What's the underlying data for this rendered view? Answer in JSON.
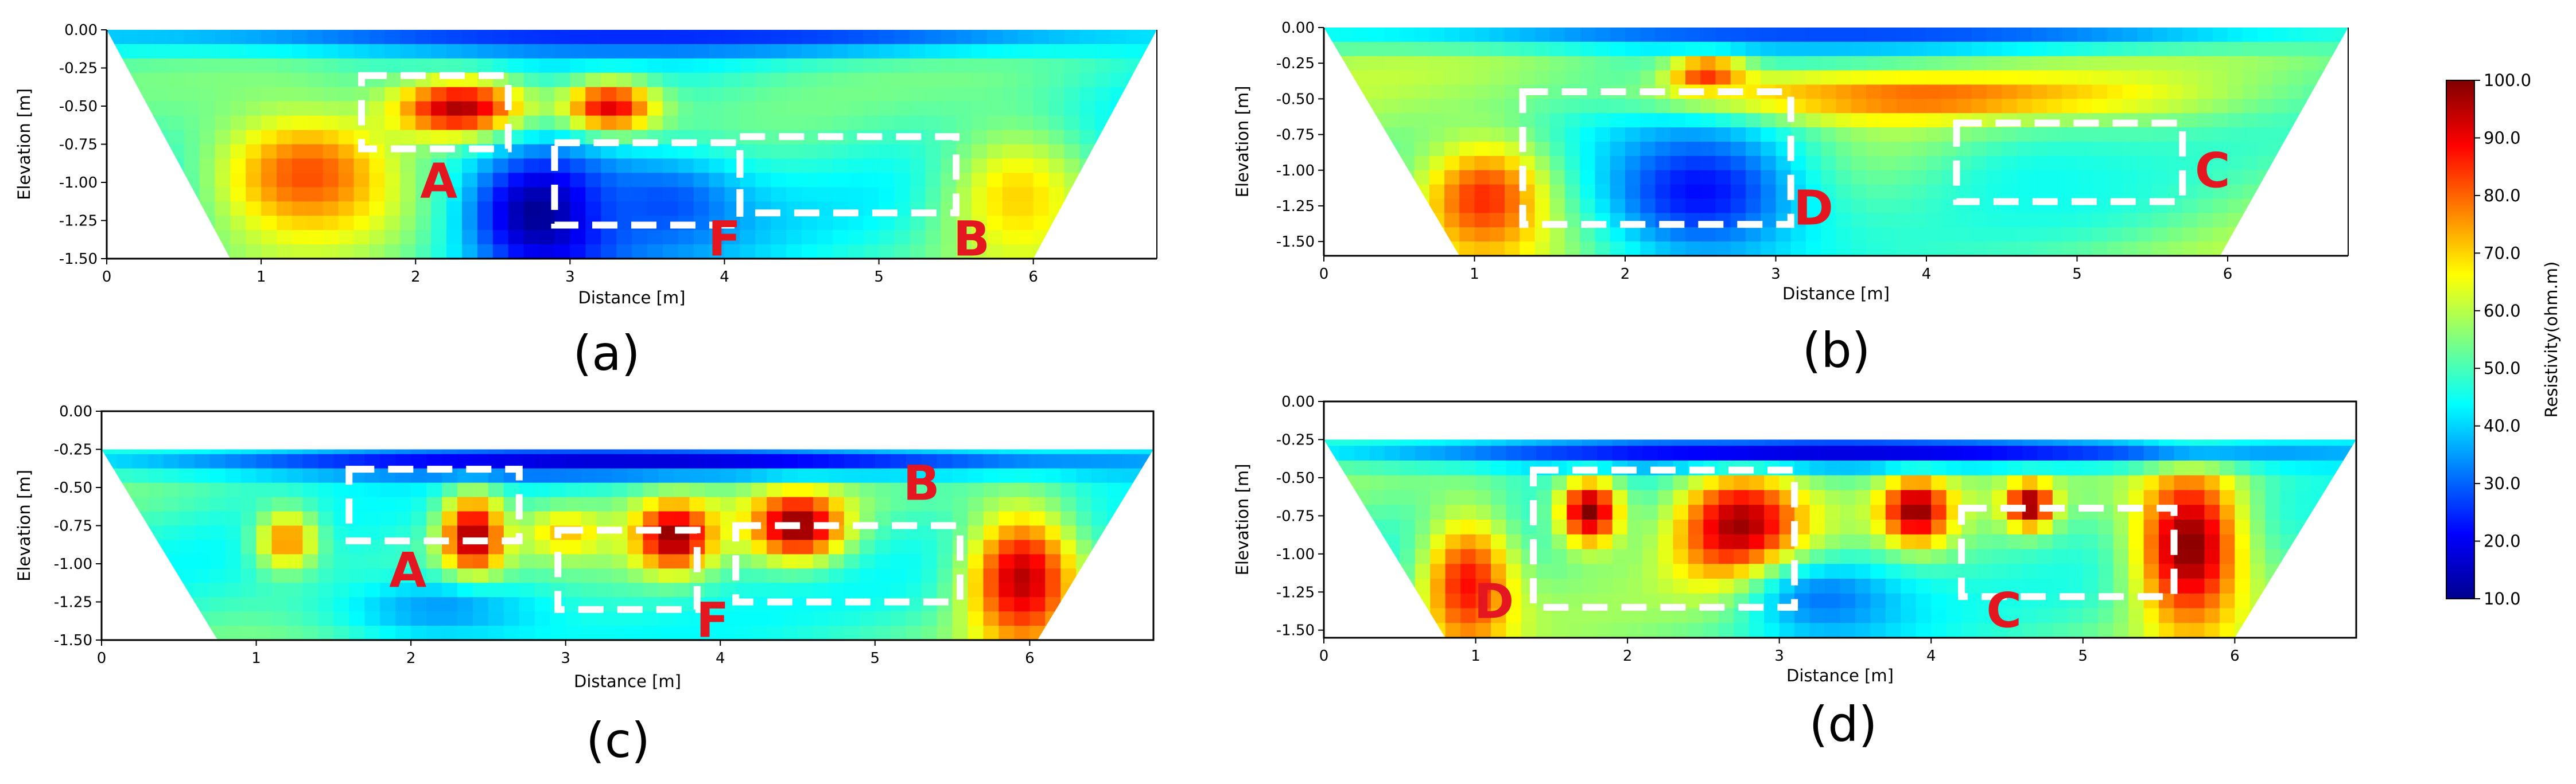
{
  "chart_data": [
    {
      "id": "a",
      "type": "heatmap",
      "caption": "(a)",
      "xlabel": "Distance [m]",
      "ylabel": "Elevation [m]",
      "xlim": [
        0,
        6.8
      ],
      "ylim": [
        -1.5,
        0.0
      ],
      "xticks": [
        "0",
        "1",
        "2",
        "3",
        "4",
        "5",
        "6"
      ],
      "yticks": [
        "0.00",
        "-0.25",
        "-0.50",
        "-0.75",
        "-1.00",
        "-1.25",
        "-1.50"
      ],
      "data_region": {
        "top": [
          0.0,
          6.8
        ],
        "bottom": [
          0.8,
          6.0
        ],
        "top_elevation": 0.0
      },
      "bg_value": 48,
      "anomalies": [
        {
          "x": 2.3,
          "y": -0.52,
          "rx": 0.45,
          "ry": 0.2,
          "value": 100
        },
        {
          "x": 1.3,
          "y": -0.95,
          "rx": 0.65,
          "ry": 0.45,
          "value": 82
        },
        {
          "x": 3.25,
          "y": -0.52,
          "rx": 0.3,
          "ry": 0.18,
          "value": 98
        },
        {
          "x": 2.85,
          "y": -1.2,
          "rx": 0.55,
          "ry": 0.45,
          "value": 8
        },
        {
          "x": 3.6,
          "y": -1.15,
          "rx": 0.6,
          "ry": 0.35,
          "value": 28
        },
        {
          "x": 5.9,
          "y": -1.1,
          "rx": 0.5,
          "ry": 0.5,
          "value": 70
        },
        {
          "x": 3.4,
          "y": -0.05,
          "rx": 3.5,
          "ry": 0.12,
          "value": 25
        }
      ],
      "boxes": [
        {
          "x0": 1.65,
          "x1": 2.6,
          "y0": -0.3,
          "y1": -0.78
        },
        {
          "x0": 2.9,
          "x1": 4.1,
          "y0": -0.74,
          "y1": -1.28
        },
        {
          "x0": 4.1,
          "x1": 5.5,
          "y0": -0.7,
          "y1": -1.2
        }
      ],
      "labels": [
        {
          "text": "A",
          "x": 2.15,
          "y": -1.1
        },
        {
          "text": "F",
          "x": 4.0,
          "y": -1.48
        },
        {
          "text": "B",
          "x": 5.6,
          "y": -1.48
        }
      ]
    },
    {
      "id": "b",
      "type": "heatmap",
      "caption": "(b)",
      "xlabel": "Distance [m]",
      "ylabel": "Elevation [m]",
      "xlim": [
        0,
        6.8
      ],
      "ylim": [
        -1.6,
        0.0
      ],
      "xticks": [
        "0",
        "1",
        "2",
        "3",
        "4",
        "5",
        "6"
      ],
      "yticks": [
        "0.00",
        "-0.25",
        "-0.50",
        "-0.75",
        "-1.00",
        "-1.25",
        "-1.50"
      ],
      "data_region": {
        "top": [
          0.0,
          6.8
        ],
        "bottom": [
          0.9,
          5.95
        ],
        "top_elevation": 0.0
      },
      "bg_value": 55,
      "anomalies": [
        {
          "x": 2.55,
          "y": -0.35,
          "rx": 0.25,
          "ry": 0.15,
          "value": 100
        },
        {
          "x": 4.0,
          "y": -0.5,
          "rx": 1.4,
          "ry": 0.15,
          "value": 85
        },
        {
          "x": 3.0,
          "y": -0.5,
          "rx": 0.8,
          "ry": 0.15,
          "value": 78
        },
        {
          "x": 1.1,
          "y": -1.2,
          "rx": 0.45,
          "ry": 0.4,
          "value": 88
        },
        {
          "x": 2.5,
          "y": -1.15,
          "rx": 0.8,
          "ry": 0.55,
          "value": 22
        },
        {
          "x": 4.8,
          "y": -1.1,
          "rx": 0.9,
          "ry": 0.45,
          "value": 45
        },
        {
          "x": 3.4,
          "y": -0.05,
          "rx": 3.5,
          "ry": 0.12,
          "value": 28
        }
      ],
      "boxes": [
        {
          "x0": 1.32,
          "x1": 3.1,
          "y0": -0.45,
          "y1": -1.38
        },
        {
          "x0": 4.2,
          "x1": 5.7,
          "y0": -0.67,
          "y1": -1.22
        }
      ],
      "labels": [
        {
          "text": "D",
          "x": 3.25,
          "y": -1.38
        },
        {
          "text": "C",
          "x": 5.9,
          "y": -1.12
        }
      ]
    },
    {
      "id": "c",
      "type": "heatmap",
      "caption": "(c)",
      "xlabel": "Distance [m]",
      "ylabel": "Elevation [m]",
      "xlim": [
        0,
        6.8
      ],
      "ylim": [
        -1.5,
        0.0
      ],
      "xticks": [
        "0",
        "1",
        "2",
        "3",
        "4",
        "5",
        "6"
      ],
      "yticks": [
        "0.00",
        "-0.25",
        "-0.50",
        "-0.75",
        "-1.00",
        "-1.25",
        "-1.50"
      ],
      "data_region": {
        "top": [
          0.0,
          6.8
        ],
        "bottom": [
          0.75,
          6.05
        ],
        "top_elevation": -0.25
      },
      "bg_value": 50,
      "anomalies": [
        {
          "x": 2.4,
          "y": -0.85,
          "rx": 0.2,
          "ry": 0.3,
          "value": 100
        },
        {
          "x": 3.7,
          "y": -0.82,
          "rx": 0.25,
          "ry": 0.22,
          "value": 100
        },
        {
          "x": 4.5,
          "y": -0.75,
          "rx": 0.3,
          "ry": 0.22,
          "value": 100
        },
        {
          "x": 1.2,
          "y": -0.85,
          "rx": 0.2,
          "ry": 0.2,
          "value": 78
        },
        {
          "x": 3.0,
          "y": -0.8,
          "rx": 0.25,
          "ry": 0.15,
          "value": 72
        },
        {
          "x": 5.95,
          "y": -1.1,
          "rx": 0.35,
          "ry": 0.45,
          "value": 95
        },
        {
          "x": 3.4,
          "y": -0.32,
          "rx": 3.5,
          "ry": 0.12,
          "value": 18
        },
        {
          "x": 2.2,
          "y": -1.3,
          "rx": 0.8,
          "ry": 0.25,
          "value": 35
        }
      ],
      "boxes": [
        {
          "x0": 1.6,
          "x1": 2.7,
          "y0": -0.38,
          "y1": -0.85
        },
        {
          "x0": 2.95,
          "x1": 3.85,
          "y0": -0.78,
          "y1": -1.3
        },
        {
          "x0": 4.1,
          "x1": 5.55,
          "y0": -0.75,
          "y1": -1.25
        }
      ],
      "labels": [
        {
          "text": "A",
          "x": 1.98,
          "y": -1.15
        },
        {
          "text": "F",
          "x": 3.95,
          "y": -1.48
        },
        {
          "text": "B",
          "x": 5.3,
          "y": -0.58
        }
      ]
    },
    {
      "id": "d",
      "type": "heatmap",
      "caption": "(d)",
      "xlabel": "Distance [m]",
      "ylabel": "Elevation [m]",
      "xlim": [
        0,
        6.8
      ],
      "ylim": [
        -1.55,
        0.0
      ],
      "xticks": [
        "0",
        "1",
        "2",
        "3",
        "4",
        "5",
        "6"
      ],
      "yticks": [
        "0.00",
        "-0.25",
        "-0.50",
        "-0.75",
        "-1.00",
        "-1.25",
        "-1.50"
      ],
      "data_region": {
        "top": [
          0.0,
          6.8
        ],
        "bottom": [
          0.8,
          6.0
        ],
        "top_elevation": -0.25
      },
      "bg_value": 52,
      "anomalies": [
        {
          "x": 1.75,
          "y": -0.72,
          "rx": 0.2,
          "ry": 0.22,
          "value": 100
        },
        {
          "x": 2.75,
          "y": -0.85,
          "rx": 0.42,
          "ry": 0.4,
          "value": 100
        },
        {
          "x": 3.9,
          "y": -0.72,
          "rx": 0.22,
          "ry": 0.22,
          "value": 100
        },
        {
          "x": 4.65,
          "y": -0.68,
          "rx": 0.15,
          "ry": 0.15,
          "value": 100
        },
        {
          "x": 5.7,
          "y": -0.95,
          "rx": 0.35,
          "ry": 0.55,
          "value": 100
        },
        {
          "x": 0.95,
          "y": -1.2,
          "rx": 0.3,
          "ry": 0.45,
          "value": 88
        },
        {
          "x": 3.4,
          "y": -0.32,
          "rx": 3.5,
          "ry": 0.12,
          "value": 18
        },
        {
          "x": 3.3,
          "y": -1.3,
          "rx": 0.6,
          "ry": 0.3,
          "value": 32
        }
      ],
      "boxes": [
        {
          "x0": 1.38,
          "x1": 3.1,
          "y0": -0.45,
          "y1": -1.35
        },
        {
          "x0": 4.2,
          "x1": 5.6,
          "y0": -0.7,
          "y1": -1.28
        }
      ],
      "labels": [
        {
          "text": "D",
          "x": 1.12,
          "y": -1.42
        },
        {
          "text": "C",
          "x": 4.48,
          "y": -1.48
        }
      ]
    }
  ],
  "colorbar": {
    "label": "Resistivity(ohm.m)",
    "min": 10,
    "max": 100,
    "ticks": [
      "100.0",
      "90.0",
      "80.0",
      "70.0",
      "60.0",
      "50.0",
      "40.0",
      "30.0",
      "20.0",
      "10.0"
    ],
    "colormap": "jet"
  }
}
